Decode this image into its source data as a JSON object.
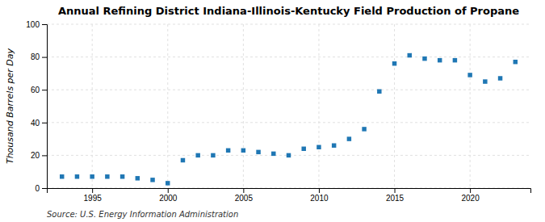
{
  "chart_data": {
    "type": "scatter",
    "title": "Annual Refining District Indiana-Illinois-Kentucky Field Production of Propane",
    "ylabel": "Thousand Barrels per Day",
    "annotations": [
      "Source: U.S. Energy Information Administration"
    ],
    "x": [
      1993,
      1994,
      1995,
      1996,
      1997,
      1998,
      1999,
      2000,
      2001,
      2002,
      2003,
      2004,
      2005,
      2006,
      2007,
      2008,
      2009,
      2010,
      2011,
      2012,
      2013,
      2014,
      2015,
      2016,
      2017,
      2018,
      2019,
      2020,
      2021,
      2022,
      2023
    ],
    "values": [
      7,
      7,
      7,
      7,
      7,
      6,
      5,
      3,
      17,
      20,
      20,
      23,
      23,
      22,
      21,
      20,
      24,
      25,
      26,
      30,
      36,
      59,
      76,
      81,
      79,
      78,
      78,
      69,
      65,
      67,
      77
    ],
    "marker": "square",
    "xlim": [
      1992,
      2024
    ],
    "ylim": [
      0,
      100
    ],
    "xticks": [
      1995,
      2000,
      2005,
      2010,
      2015,
      2020
    ],
    "yticks": [
      0,
      20,
      40,
      60,
      80,
      100
    ],
    "grid": true
  }
}
